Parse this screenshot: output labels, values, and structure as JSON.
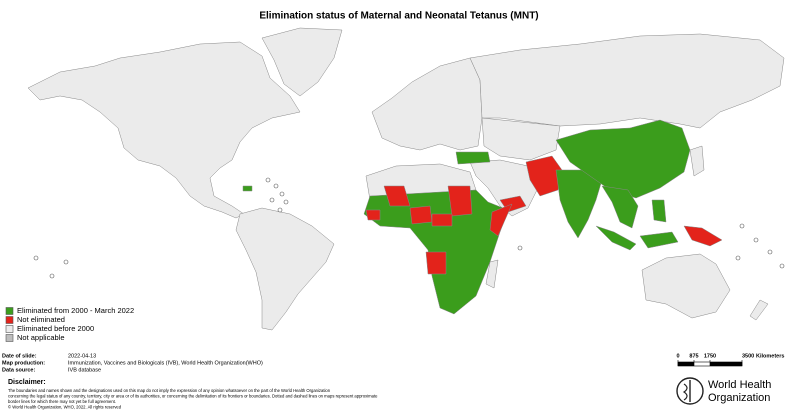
{
  "title": "Elimination status of Maternal and Neonatal Tetanus (MNT)",
  "legend": {
    "items": [
      {
        "label": "Eliminated from 2000 - March 2022",
        "color": "#3b9d1c"
      },
      {
        "label": "Not eliminated",
        "color": "#e3231b"
      },
      {
        "label": "Eliminated before 2000",
        "color": "#ebebeb"
      },
      {
        "label": "Not applicable",
        "color": "#bdbdbd"
      }
    ]
  },
  "info": [
    {
      "label": "Date of slide:",
      "value": "2022-04-13"
    },
    {
      "label": "Map production:",
      "value": "Immunization, Vaccines and Biologicals (IVB), World Health Organization(WHO)"
    },
    {
      "label": "Data source:",
      "value": "IVB database"
    }
  ],
  "scale_bar": {
    "ticks": [
      0,
      875,
      1750,
      3500
    ],
    "unit": "Kilometers"
  },
  "disclaimer": {
    "title": "Disclaimer:",
    "lines": [
      "The boundaries and names shown and the designations used on this map do not imply the expression of any opinion whatsoever on the part of the World Health Organization",
      "concerning the legal status of any country, territory, city or area or of its authorities, or concerning the delimitation of its frontiers or boundaries. Dotted and dashed lines on maps represent approximate",
      "border lines for which there may not yet be full agreement.",
      "© World Health Organization, WHO, 2022. All rights reserved"
    ]
  },
  "logo": {
    "line1": "World Health",
    "line2": "Organization"
  }
}
